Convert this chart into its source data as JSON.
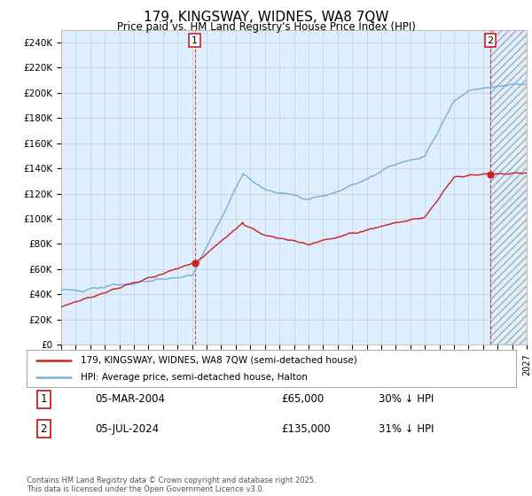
{
  "title": "179, KINGSWAY, WIDNES, WA8 7QW",
  "subtitle": "Price paid vs. HM Land Registry's House Price Index (HPI)",
  "ytick_labels": [
    "£0",
    "£20K",
    "£40K",
    "£60K",
    "£80K",
    "£100K",
    "£120K",
    "£140K",
    "£160K",
    "£180K",
    "£200K",
    "£220K",
    "£240K"
  ],
  "ytick_values": [
    0,
    20000,
    40000,
    60000,
    80000,
    100000,
    120000,
    140000,
    160000,
    180000,
    200000,
    220000,
    240000
  ],
  "ylim": [
    0,
    250000
  ],
  "xmin_year": 1995,
  "xmax_year": 2027,
  "xtick_years": [
    1995,
    1996,
    1997,
    1998,
    1999,
    2000,
    2001,
    2002,
    2003,
    2004,
    2005,
    2006,
    2007,
    2008,
    2009,
    2010,
    2011,
    2012,
    2013,
    2014,
    2015,
    2016,
    2017,
    2018,
    2019,
    2020,
    2021,
    2022,
    2023,
    2024,
    2025,
    2026,
    2027
  ],
  "hpi_color": "#7bafd4",
  "price_color": "#cc2222",
  "chart_bg_color": "#ddeeff",
  "sale1_x": 2004.18,
  "sale1_y": 65000,
  "sale2_x": 2024.5,
  "sale2_y": 135000,
  "marker1_label": "1",
  "marker2_label": "2",
  "vline_color": "#cc2222",
  "legend_line1": "179, KINGSWAY, WIDNES, WA8 7QW (semi-detached house)",
  "legend_line2": "HPI: Average price, semi-detached house, Halton",
  "table_row1_num": "1",
  "table_row1_date": "05-MAR-2004",
  "table_row1_price": "£65,000",
  "table_row1_hpi": "30% ↓ HPI",
  "table_row2_num": "2",
  "table_row2_date": "05-JUL-2024",
  "table_row2_price": "£135,000",
  "table_row2_hpi": "31% ↓ HPI",
  "footnote": "Contains HM Land Registry data © Crown copyright and database right 2025.\nThis data is licensed under the Open Government Licence v3.0.",
  "background_color": "#ffffff",
  "grid_color": "#cccccc",
  "hpi_linewidth": 1.0,
  "price_linewidth": 1.0
}
